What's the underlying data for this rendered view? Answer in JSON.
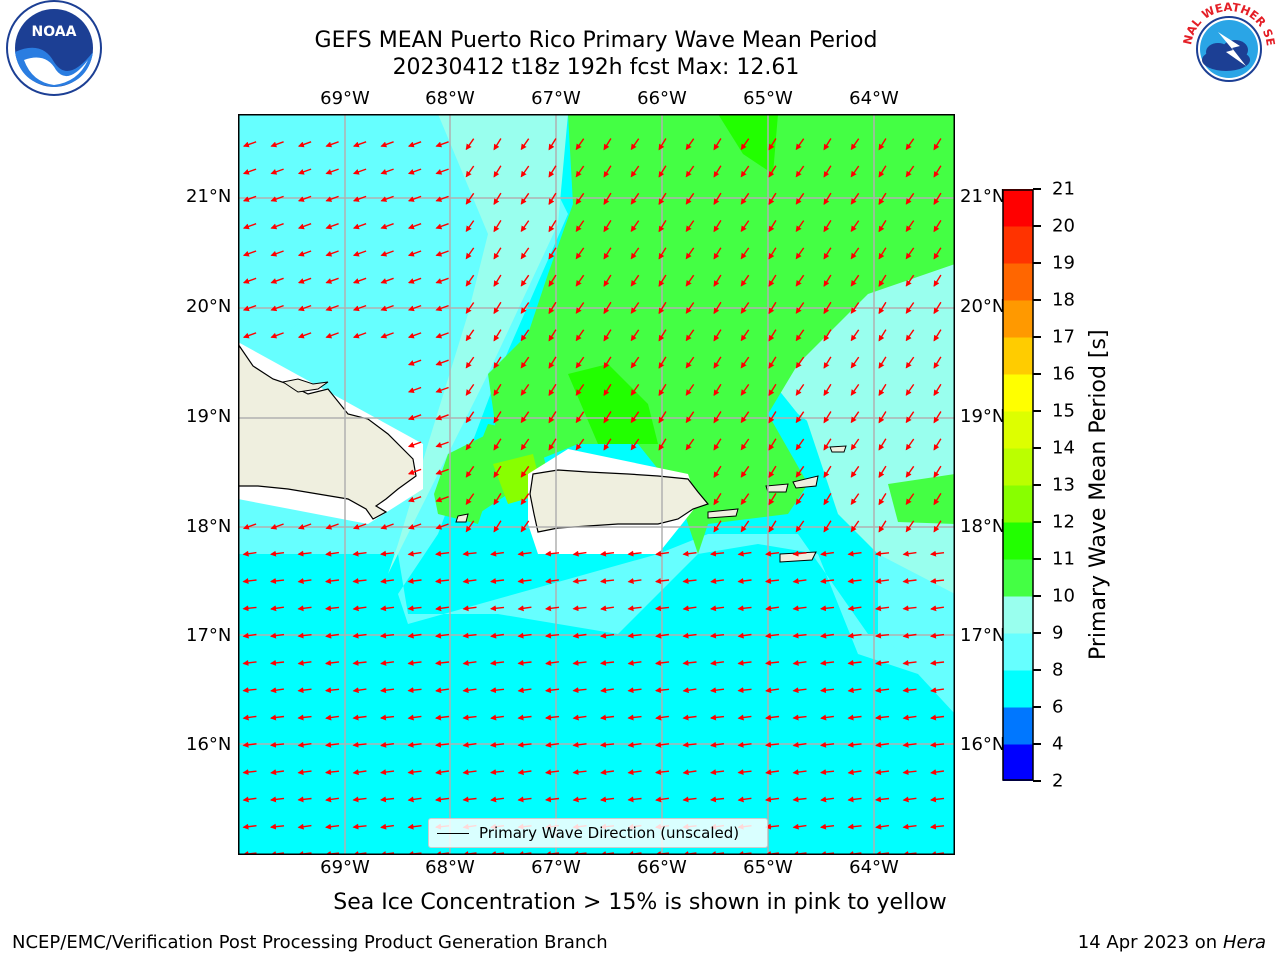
{
  "title_line1": "GEFS MEAN Puerto Rico Primary Wave Mean Period",
  "title_line2": "20230412 t18z 192h fcst   Max: 12.61",
  "lon_labels": [
    "69°W",
    "68°W",
    "67°W",
    "66°W",
    "65°W",
    "64°W"
  ],
  "lat_labels": [
    "21°N",
    "20°N",
    "19°N",
    "18°N",
    "17°N",
    "16°N"
  ],
  "colorbar": {
    "label": "Primary Wave Mean Period [s]",
    "ticks": [
      "2",
      "4",
      "6",
      "8",
      "9",
      "10",
      "11",
      "12",
      "13",
      "14",
      "15",
      "16",
      "17",
      "18",
      "19",
      "20",
      "21"
    ],
    "colors": [
      "#0000ff",
      "#0077ff",
      "#00ffff",
      "#66ffff",
      "#99ffee",
      "#44ff44",
      "#22ff00",
      "#88ff00",
      "#bbff00",
      "#ddff00",
      "#ffff00",
      "#ffcc00",
      "#ff9900",
      "#ff6600",
      "#ff3300",
      "#ff0000"
    ]
  },
  "legend_label": "Primary Wave Direction (unscaled)",
  "bottom_note": "Sea Ice Concentration > 15% is shown in pink to yellow",
  "footer_left": "NCEP/EMC/Verification Post Processing Product Generation Branch",
  "footer_date": "14 Apr 2023 on ",
  "footer_machine": "Hera",
  "logo_left_text": "NOAA",
  "logo_right_text": "NATIONAL WEATHER SERVICE"
}
